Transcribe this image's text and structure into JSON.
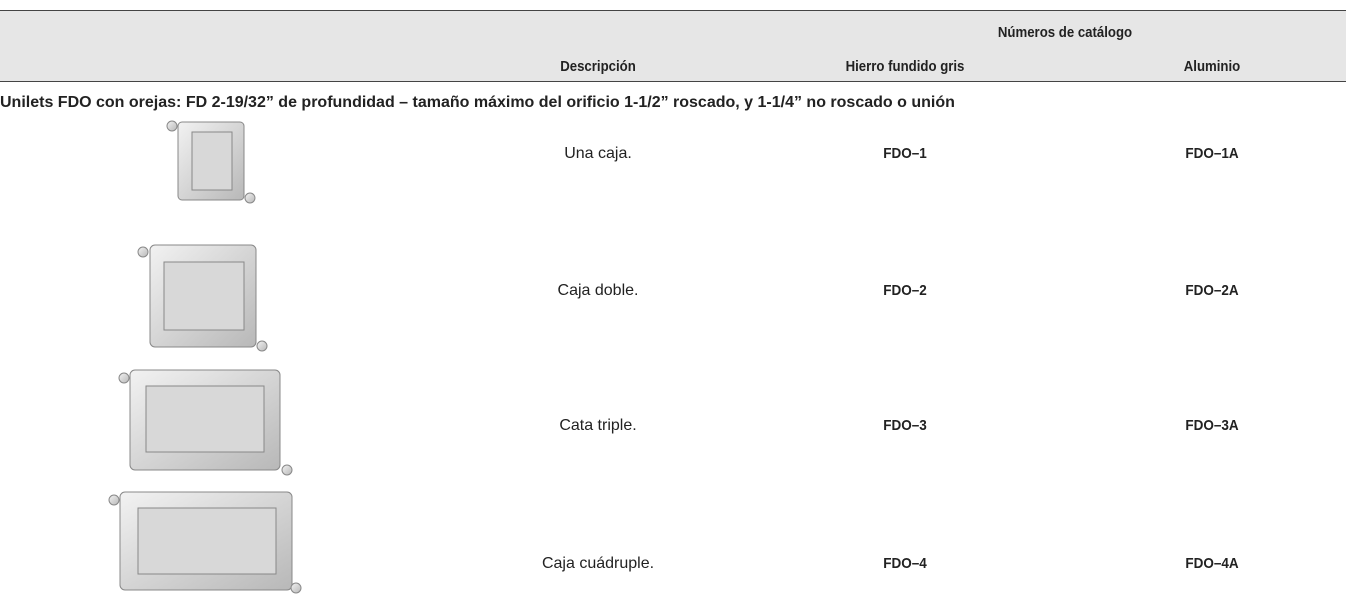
{
  "table": {
    "header": {
      "group": "Números de catálogo",
      "columns": [
        "Descripción",
        "Hierro fundido gris",
        "Aluminio"
      ]
    },
    "section": "Unilets FDO con orejas: FD 2-19/32” de profundidad – tamaño máximo del orificio 1-1/2” roscado, y 1-1/4” no roscado o unión",
    "rows": [
      {
        "description": "Una caja.",
        "iron": "FDO–1",
        "aluminum": "FDO–1A"
      },
      {
        "description": "Caja doble.",
        "iron": "FDO–2",
        "aluminum": "FDO–2A"
      },
      {
        "description": "Cata triple.",
        "iron": "FDO–3",
        "aluminum": "FDO–3A"
      },
      {
        "description": "Caja cuádruple.",
        "iron": "FDO–4",
        "aluminum": "FDO–4A"
      }
    ]
  }
}
